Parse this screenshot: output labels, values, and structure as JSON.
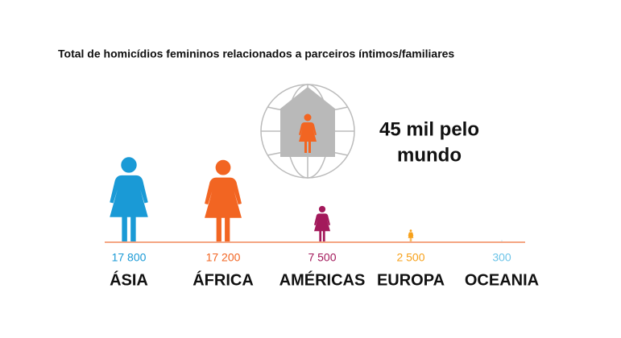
{
  "chart_data": {
    "type": "pictogram",
    "title": "Total de homicídios femininos relacionados a parceiros íntimos/familiares",
    "annotation": [
      "45 mil pelo",
      "mundo"
    ],
    "categories": [
      "ÁSIA",
      "ÁFRICA",
      "AMÉRICAS",
      "EUROPA",
      "OCEANIA"
    ],
    "values": [
      17800,
      17200,
      7500,
      2500,
      300
    ],
    "value_labels": [
      "17 800",
      "17 200",
      "7 500",
      "2 500",
      "300"
    ],
    "colors": [
      "#1a9ad6",
      "#f26522",
      "#a3195b",
      "#f7a11a",
      "#6cc4e8"
    ]
  }
}
